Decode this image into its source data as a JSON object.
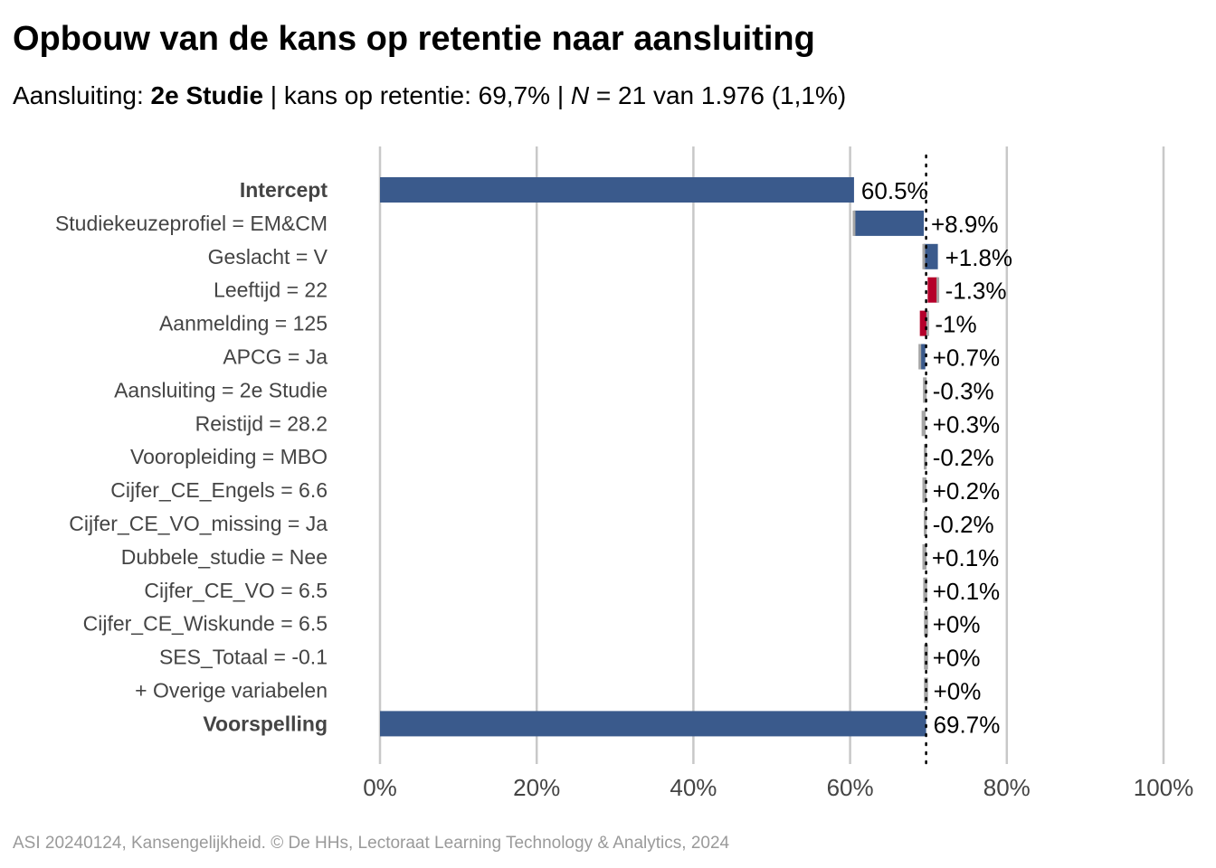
{
  "header": {
    "title": "Opbouw van de kans op retentie naar aansluiting",
    "subtitle": {
      "prefix": "Aansluiting: ",
      "group": "2e Studie",
      "mid": " | kans op retentie: 69,7% | ",
      "n_symbol": "N",
      "suffix": " = 21 van 1.976 (1,1%)"
    }
  },
  "caption": "ASI 20240124, Kansengelijkheid. © De HHs, Lectoraat Learning Technology & Analytics, 2024",
  "colors": {
    "positive": "#3a5a8c",
    "negative": "#b5002a",
    "neutral": "#a6a6a6",
    "grid": "#c8c8c8",
    "ref_line": "#000000"
  },
  "chart_data": {
    "type": "bar",
    "subtype": "waterfall",
    "title": "Opbouw van de kans op retentie naar aansluiting",
    "xlim": [
      0,
      100
    ],
    "x_ticks": [
      0,
      20,
      40,
      60,
      80,
      100
    ],
    "x_tick_labels": [
      "0%",
      "20%",
      "40%",
      "60%",
      "80%",
      "100%"
    ],
    "reference_line": 69.7,
    "grid": true,
    "rows": [
      {
        "label": "Intercept",
        "kind": "total",
        "start": 0,
        "end": 60.5,
        "value_label": "60.5%"
      },
      {
        "label": "Studiekeuzeprofiel = EM&CM",
        "kind": "contribution",
        "start": 60.5,
        "end": 69.4,
        "value_label": "+8.9%"
      },
      {
        "label": "Geslacht = V",
        "kind": "contribution",
        "start": 69.4,
        "end": 71.2,
        "value_label": "+1.8%"
      },
      {
        "label": "Leeftijd = 22",
        "kind": "contribution",
        "start": 71.2,
        "end": 69.9,
        "value_label": "-1.3%"
      },
      {
        "label": "Aanmelding = 125",
        "kind": "contribution",
        "start": 69.9,
        "end": 68.9,
        "value_label": "-1%"
      },
      {
        "label": "APCG = Ja",
        "kind": "contribution",
        "start": 68.9,
        "end": 69.6,
        "value_label": "+0.7%"
      },
      {
        "label": "Aansluiting = 2e Studie",
        "kind": "contribution",
        "start": 69.6,
        "end": 69.3,
        "value_label": "-0.3%"
      },
      {
        "label": "Reistijd = 28.2",
        "kind": "contribution",
        "start": 69.3,
        "end": 69.6,
        "value_label": "+0.3%"
      },
      {
        "label": "Vooropleiding = MBO",
        "kind": "contribution",
        "start": 69.6,
        "end": 69.4,
        "value_label": "-0.2%"
      },
      {
        "label": "Cijfer_CE_Engels = 6.6",
        "kind": "contribution",
        "start": 69.4,
        "end": 69.6,
        "value_label": "+0.2%"
      },
      {
        "label": "Cijfer_CE_VO_missing = Ja",
        "kind": "contribution",
        "start": 69.6,
        "end": 69.4,
        "value_label": "-0.2%"
      },
      {
        "label": "Dubbele_studie = Nee",
        "kind": "contribution",
        "start": 69.4,
        "end": 69.5,
        "value_label": "+0.1%"
      },
      {
        "label": "Cijfer_CE_VO = 6.5",
        "kind": "contribution",
        "start": 69.5,
        "end": 69.6,
        "value_label": "+0.1%"
      },
      {
        "label": "Cijfer_CE_Wiskunde = 6.5",
        "kind": "contribution",
        "start": 69.6,
        "end": 69.6,
        "value_label": "+0%"
      },
      {
        "label": "SES_Totaal = -0.1",
        "kind": "contribution",
        "start": 69.6,
        "end": 69.6,
        "value_label": "+0%"
      },
      {
        "label": "+ Overige variabelen",
        "kind": "contribution",
        "start": 69.6,
        "end": 69.7,
        "value_label": "+0%"
      },
      {
        "label": "Voorspelling",
        "kind": "total",
        "start": 0,
        "end": 69.7,
        "value_label": "69.7%"
      }
    ]
  }
}
